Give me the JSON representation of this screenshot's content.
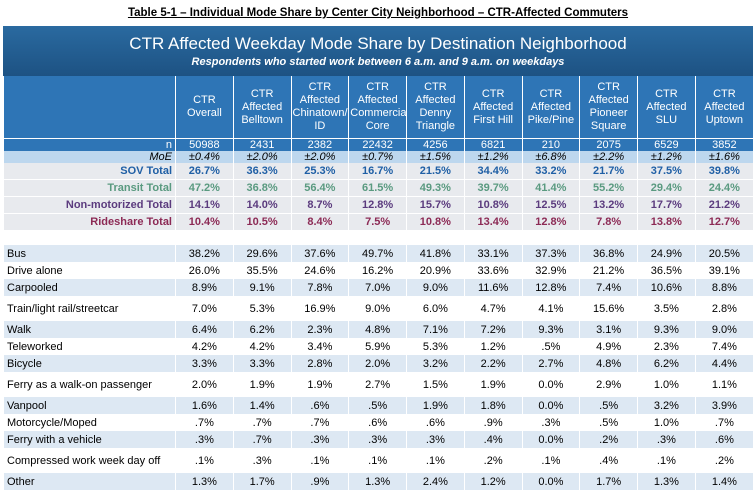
{
  "caption": "Table 5-1 – Individual Mode Share by Center City Neighborhood – CTR-Affected Commuters",
  "table": {
    "title": "CTR Affected Weekday Mode Share by Destination Neighborhood",
    "subtitle": "Respondents who started work between 6 a.m. and 9 a.m. on weekdays",
    "columns": [
      "CTR Overall",
      "CTR Affected Belltown",
      "CTR Affected Chinatown/ ID",
      "CTR Affected Commercial Core",
      "CTR Affected Denny Triangle",
      "CTR Affected First Hill",
      "CTR Affected Pike/Pine",
      "CTR Affected Pioneer Square",
      "CTR Affected SLU",
      "CTR Affected Uptown"
    ],
    "n": {
      "label": "n",
      "values": [
        "50988",
        "2431",
        "2382",
        "22432",
        "4256",
        "6821",
        "210",
        "2075",
        "6529",
        "3852"
      ]
    },
    "moe": {
      "label": "MoE",
      "values": [
        "±0.4%",
        "±2.0%",
        "±2.0%",
        "±0.7%",
        "±1.5%",
        "±1.2%",
        "±6.8%",
        "±2.2%",
        "±1.2%",
        "±1.6%"
      ]
    },
    "summary": [
      {
        "label": "SOV Total",
        "color": "#1f5fa5",
        "values": [
          "26.7%",
          "36.3%",
          "25.3%",
          "16.7%",
          "21.5%",
          "34.4%",
          "33.2%",
          "21.7%",
          "37.5%",
          "39.8%"
        ]
      },
      {
        "label": "Transit Total",
        "color": "#5a9a80",
        "values": [
          "47.2%",
          "36.8%",
          "56.4%",
          "61.5%",
          "49.3%",
          "39.7%",
          "41.4%",
          "55.2%",
          "29.4%",
          "24.4%"
        ]
      },
      {
        "label": "Non-motorized Total",
        "color": "#5b3b7e",
        "values": [
          "14.1%",
          "14.0%",
          "8.7%",
          "12.8%",
          "15.7%",
          "10.8%",
          "12.5%",
          "13.2%",
          "17.7%",
          "21.2%"
        ]
      },
      {
        "label": "Rideshare Total",
        "color": "#8c2a55",
        "values": [
          "10.4%",
          "10.5%",
          "8.4%",
          "7.5%",
          "10.8%",
          "13.4%",
          "12.8%",
          "7.8%",
          "13.8%",
          "12.7%"
        ]
      }
    ],
    "rows": [
      {
        "label": "Bus",
        "values": [
          "38.2%",
          "29.6%",
          "37.6%",
          "49.7%",
          "41.8%",
          "33.1%",
          "37.3%",
          "36.8%",
          "24.9%",
          "20.5%"
        ]
      },
      {
        "label": "Drive alone",
        "values": [
          "26.0%",
          "35.5%",
          "24.6%",
          "16.2%",
          "20.9%",
          "33.6%",
          "32.9%",
          "21.2%",
          "36.5%",
          "39.1%"
        ]
      },
      {
        "label": "Carpooled",
        "values": [
          "8.9%",
          "9.1%",
          "7.8%",
          "7.0%",
          "9.0%",
          "11.6%",
          "12.8%",
          "7.4%",
          "10.6%",
          "8.8%"
        ]
      },
      {
        "label": "Train/light rail/streetcar",
        "values": [
          "7.0%",
          "5.3%",
          "16.9%",
          "9.0%",
          "6.0%",
          "4.7%",
          "4.1%",
          "15.6%",
          "3.5%",
          "2.8%"
        ]
      },
      {
        "label": "Walk",
        "values": [
          "6.4%",
          "6.2%",
          "2.3%",
          "4.8%",
          "7.1%",
          "7.2%",
          "9.3%",
          "3.1%",
          "9.3%",
          "9.0%"
        ]
      },
      {
        "label": "Teleworked",
        "values": [
          "4.2%",
          "4.2%",
          "3.4%",
          "5.9%",
          "5.3%",
          "1.2%",
          ".5%",
          "4.9%",
          "2.3%",
          "7.4%"
        ]
      },
      {
        "label": "Bicycle",
        "values": [
          "3.3%",
          "3.3%",
          "2.8%",
          "2.0%",
          "3.2%",
          "2.2%",
          "2.7%",
          "4.8%",
          "6.2%",
          "4.4%"
        ]
      },
      {
        "label": "Ferry as a walk-on passenger",
        "values": [
          "2.0%",
          "1.9%",
          "1.9%",
          "2.7%",
          "1.5%",
          "1.9%",
          "0.0%",
          "2.9%",
          "1.0%",
          "1.1%"
        ]
      },
      {
        "label": "Vanpool",
        "values": [
          "1.6%",
          "1.4%",
          ".6%",
          ".5%",
          "1.9%",
          "1.8%",
          "0.0%",
          ".5%",
          "3.2%",
          "3.9%"
        ]
      },
      {
        "label": "Motorcycle/Moped",
        "values": [
          ".7%",
          ".7%",
          ".7%",
          ".6%",
          ".6%",
          ".9%",
          ".3%",
          ".5%",
          "1.0%",
          ".7%"
        ]
      },
      {
        "label": "Ferry with a vehicle",
        "values": [
          ".3%",
          ".7%",
          ".3%",
          ".3%",
          ".3%",
          ".4%",
          "0.0%",
          ".2%",
          ".3%",
          ".6%"
        ]
      },
      {
        "label": "Compressed work week day off",
        "values": [
          ".1%",
          ".3%",
          ".1%",
          ".1%",
          ".1%",
          ".2%",
          ".1%",
          ".4%",
          ".1%",
          ".2%"
        ]
      },
      {
        "label": "Other",
        "values": [
          "1.3%",
          "1.7%",
          ".9%",
          "1.3%",
          "2.4%",
          "1.2%",
          "0.0%",
          "1.7%",
          "1.3%",
          "1.4%"
        ]
      }
    ]
  }
}
